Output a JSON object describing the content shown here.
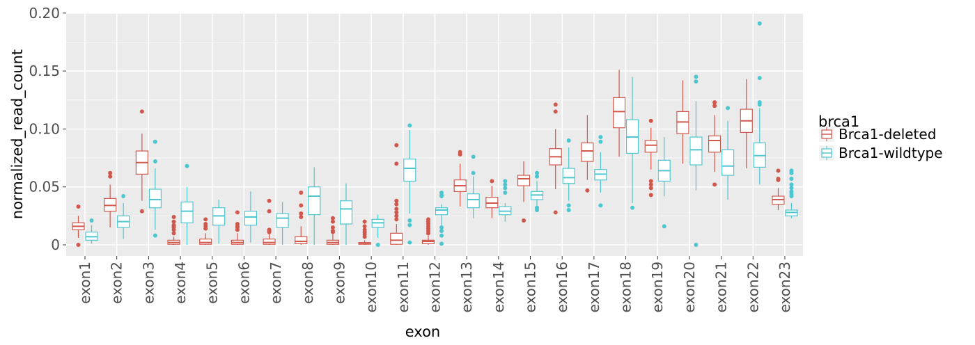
{
  "chart_data": {
    "type": "boxplot",
    "title": "",
    "xlabel": "exon",
    "ylabel": "normalized_read_count",
    "ylim": [
      -0.01,
      0.2
    ],
    "yticks": [
      0,
      0.05,
      0.1,
      0.15,
      0.2
    ],
    "ytick_labels": [
      "0",
      "0.05",
      "0.10",
      "0.15",
      "0.20"
    ],
    "grid": true,
    "legend": {
      "title": "brca1",
      "placement": "right"
    },
    "categories": [
      "exon1",
      "exon2",
      "exon3",
      "exon4",
      "exon5",
      "exon6",
      "exon7",
      "exon8",
      "exon9",
      "exon10",
      "exon11",
      "exon12",
      "exon13",
      "exon14",
      "exon15",
      "exon16",
      "exon17",
      "exon18",
      "exon19",
      "exon20",
      "exon21",
      "exon22",
      "exon23"
    ],
    "series": [
      {
        "name": "Brca1-deleted",
        "color": "#D0574B",
        "stats": [
          {
            "lo": 0.006,
            "q1": 0.013,
            "med": 0.016,
            "q3": 0.019,
            "hi": 0.025,
            "outliers": [
              0.033,
              0.0
            ]
          },
          {
            "lo": 0.015,
            "q1": 0.029,
            "med": 0.034,
            "q3": 0.04,
            "hi": 0.052,
            "outliers": [
              0.059,
              0.062
            ]
          },
          {
            "lo": 0.038,
            "q1": 0.061,
            "med": 0.071,
            "q3": 0.081,
            "hi": 0.096,
            "outliers": [
              0.115,
              0.029
            ]
          },
          {
            "lo": 0,
            "q1": 0.0005,
            "med": 0.002,
            "q3": 0.004,
            "hi": 0.007,
            "outliers": [
              0.01,
              0.013,
              0.015,
              0.016,
              0.017,
              0.02,
              0.024
            ]
          },
          {
            "lo": 0,
            "q1": 0.0005,
            "med": 0.002,
            "q3": 0.005,
            "hi": 0.01,
            "outliers": [
              0.014,
              0.016,
              0.018,
              0.022
            ]
          },
          {
            "lo": 0,
            "q1": 0.0005,
            "med": 0.002,
            "q3": 0.004,
            "hi": 0.01,
            "outliers": [
              0.013,
              0.015,
              0.016,
              0.018,
              0.028
            ]
          },
          {
            "lo": 0,
            "q1": 0.0005,
            "med": 0.002,
            "q3": 0.005,
            "hi": 0.01,
            "outliers": [
              0.011,
              0.012,
              0.013,
              0.029,
              0.038
            ]
          },
          {
            "lo": 0,
            "q1": 0.001,
            "med": 0.003,
            "q3": 0.007,
            "hi": 0.016,
            "outliers": [
              0.024,
              0.027,
              0.034,
              0.045
            ]
          },
          {
            "lo": 0,
            "q1": 0.0005,
            "med": 0.002,
            "q3": 0.004,
            "hi": 0.009,
            "outliers": [
              0.011,
              0.012,
              0.015,
              0.02,
              0.023
            ]
          },
          {
            "lo": 0,
            "q1": 0.0005,
            "med": 0.001,
            "q3": 0.002,
            "hi": 0.004,
            "outliers": [
              0.007,
              0.009,
              0.011,
              0.013,
              0.016,
              0.02
            ]
          },
          {
            "lo": 0,
            "q1": 0.0005,
            "med": 0.004,
            "q3": 0.01,
            "hi": 0.018,
            "outliers": [
              0.022,
              0.025,
              0.028,
              0.031,
              0.035,
              0.038,
              0.07,
              0.086
            ]
          },
          {
            "lo": 0,
            "q1": 0.001,
            "med": 0.003,
            "q3": 0.004,
            "hi": 0.008,
            "outliers": [
              0.01,
              0.012,
              0.014,
              0.016,
              0.018,
              0.02,
              0.022
            ]
          },
          {
            "lo": 0.033,
            "q1": 0.046,
            "med": 0.051,
            "q3": 0.056,
            "hi": 0.07,
            "outliers": [
              0.08,
              0.078
            ]
          },
          {
            "lo": 0.023,
            "q1": 0.032,
            "med": 0.036,
            "q3": 0.041,
            "hi": 0.051,
            "outliers": [
              0.055
            ]
          },
          {
            "lo": 0.037,
            "q1": 0.051,
            "med": 0.057,
            "q3": 0.06,
            "hi": 0.072,
            "outliers": [
              0.021
            ]
          },
          {
            "lo": 0.048,
            "q1": 0.069,
            "med": 0.076,
            "q3": 0.083,
            "hi": 0.1,
            "outliers": [
              0.115,
              0.121,
              0.028
            ]
          },
          {
            "lo": 0.056,
            "q1": 0.072,
            "med": 0.081,
            "q3": 0.088,
            "hi": 0.112,
            "outliers": [
              0.047
            ]
          },
          {
            "lo": 0.076,
            "q1": 0.101,
            "med": 0.115,
            "q3": 0.127,
            "hi": 0.151,
            "outliers": []
          },
          {
            "lo": 0.065,
            "q1": 0.08,
            "med": 0.086,
            "q3": 0.09,
            "hi": 0.101,
            "outliers": [
              0.107,
              0.055,
              0.052,
              0.049,
              0.043
            ]
          },
          {
            "lo": 0.07,
            "q1": 0.096,
            "med": 0.106,
            "q3": 0.115,
            "hi": 0.142,
            "outliers": []
          },
          {
            "lo": 0.063,
            "q1": 0.08,
            "med": 0.09,
            "q3": 0.094,
            "hi": 0.112,
            "outliers": [
              0.123,
              0.12,
              0.052
            ]
          },
          {
            "lo": 0.066,
            "q1": 0.097,
            "med": 0.107,
            "q3": 0.117,
            "hi": 0.143,
            "outliers": []
          },
          {
            "lo": 0.03,
            "q1": 0.035,
            "med": 0.039,
            "q3": 0.042,
            "hi": 0.049,
            "outliers": [
              0.064,
              0.057,
              0.056
            ]
          }
        ]
      },
      {
        "name": "Brca1-wildtype",
        "color": "#4DC6CF",
        "stats": [
          {
            "lo": 0.001,
            "q1": 0.004,
            "med": 0.007,
            "q3": 0.011,
            "hi": 0.017,
            "outliers": [
              0.021
            ]
          },
          {
            "lo": 0.005,
            "q1": 0.015,
            "med": 0.02,
            "q3": 0.025,
            "hi": 0.036,
            "outliers": [
              0.042
            ]
          },
          {
            "lo": 0.013,
            "q1": 0.032,
            "med": 0.039,
            "q3": 0.048,
            "hi": 0.066,
            "outliers": [
              0.089,
              0.072,
              0.008
            ]
          },
          {
            "lo": 0,
            "q1": 0.019,
            "med": 0.029,
            "q3": 0.037,
            "hi": 0.05,
            "outliers": [
              0.068
            ]
          },
          {
            "lo": 0.001,
            "q1": 0.017,
            "med": 0.025,
            "q3": 0.032,
            "hi": 0.039,
            "outliers": []
          },
          {
            "lo": 0.002,
            "q1": 0.017,
            "med": 0.024,
            "q3": 0.029,
            "hi": 0.046,
            "outliers": []
          },
          {
            "lo": 0,
            "q1": 0.015,
            "med": 0.023,
            "q3": 0.027,
            "hi": 0.037,
            "outliers": []
          },
          {
            "lo": 0,
            "q1": 0.026,
            "med": 0.042,
            "q3": 0.05,
            "hi": 0.067,
            "outliers": []
          },
          {
            "lo": 0,
            "q1": 0.018,
            "med": 0.031,
            "q3": 0.038,
            "hi": 0.053,
            "outliers": []
          },
          {
            "lo": 0.006,
            "q1": 0.015,
            "med": 0.019,
            "q3": 0.022,
            "hi": 0.026,
            "outliers": [
              0.0
            ]
          },
          {
            "lo": 0.027,
            "q1": 0.055,
            "med": 0.066,
            "q3": 0.074,
            "hi": 0.099,
            "outliers": [
              0.103,
              0.021,
              0.017,
              0.002
            ]
          },
          {
            "lo": 0.017,
            "q1": 0.026,
            "med": 0.03,
            "q3": 0.032,
            "hi": 0.035,
            "outliers": [
              0.045,
              0.043,
              0.042,
              0.015,
              0.012,
              0.008,
              0.001
            ]
          },
          {
            "lo": 0.023,
            "q1": 0.032,
            "med": 0.039,
            "q3": 0.044,
            "hi": 0.059,
            "outliers": [
              0.076,
              0.062
            ]
          },
          {
            "lo": 0.02,
            "q1": 0.026,
            "med": 0.029,
            "q3": 0.033,
            "hi": 0.036,
            "outliers": [
              0.055,
              0.052,
              0.049,
              0.045
            ]
          },
          {
            "lo": 0.033,
            "q1": 0.039,
            "med": 0.043,
            "q3": 0.046,
            "hi": 0.055,
            "outliers": [
              0.062,
              0.059,
              0.032,
              0.03
            ]
          },
          {
            "lo": 0.038,
            "q1": 0.053,
            "med": 0.058,
            "q3": 0.066,
            "hi": 0.084,
            "outliers": [
              0.09,
              0.034,
              0.03
            ]
          },
          {
            "lo": 0.045,
            "q1": 0.056,
            "med": 0.061,
            "q3": 0.065,
            "hi": 0.08,
            "outliers": [
              0.093,
              0.089,
              0.034
            ]
          },
          {
            "lo": 0.036,
            "q1": 0.079,
            "med": 0.093,
            "q3": 0.108,
            "hi": 0.145,
            "outliers": [
              0.032
            ]
          },
          {
            "lo": 0.042,
            "q1": 0.055,
            "med": 0.064,
            "q3": 0.073,
            "hi": 0.093,
            "outliers": [
              0.016
            ]
          },
          {
            "lo": 0.047,
            "q1": 0.069,
            "med": 0.082,
            "q3": 0.093,
            "hi": 0.124,
            "outliers": [
              0.145,
              0.141,
              0.0
            ]
          },
          {
            "lo": 0.039,
            "q1": 0.06,
            "med": 0.068,
            "q3": 0.082,
            "hi": 0.107,
            "outliers": [
              0.118
            ]
          },
          {
            "lo": 0.052,
            "q1": 0.067,
            "med": 0.077,
            "q3": 0.088,
            "hi": 0.118,
            "outliers": [
              0.191,
              0.144,
              0.123,
              0.121
            ]
          },
          {
            "lo": 0.023,
            "q1": 0.025,
            "med": 0.028,
            "q3": 0.03,
            "hi": 0.036,
            "outliers": [
              0.064,
              0.062,
              0.057,
              0.052,
              0.049,
              0.046,
              0.044,
              0.042
            ]
          }
        ]
      }
    ]
  }
}
